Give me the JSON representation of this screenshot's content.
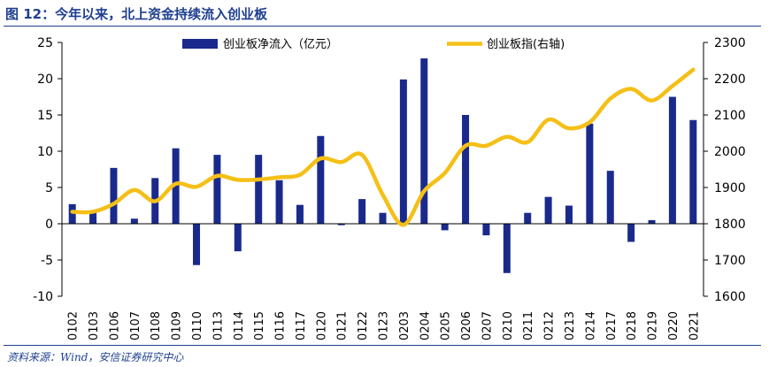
{
  "figure": {
    "title": "图 12：今年以来，北上资金持续流入创业板",
    "source": "资料来源：Wind，安信证券研究中心"
  },
  "colors": {
    "bar": "#1a2a8c",
    "line": "#f5bf16",
    "rule": "#1f3f8f"
  },
  "chart_data": {
    "type": "bar+line",
    "title": "今年以来，北上资金持续流入创业板",
    "categories": [
      "0102",
      "0103",
      "0106",
      "0107",
      "0108",
      "0109",
      "0110",
      "0113",
      "0114",
      "0115",
      "0116",
      "0117",
      "0120",
      "0121",
      "0122",
      "0123",
      "0203",
      "0204",
      "0205",
      "0206",
      "0207",
      "0210",
      "0211",
      "0212",
      "0213",
      "0214",
      "0217",
      "0218",
      "0219",
      "0220",
      "0221"
    ],
    "series": [
      {
        "name": "创业板净流入（亿元）",
        "type": "bar",
        "axis": "left",
        "values": [
          2.7,
          1.7,
          7.7,
          0.7,
          6.3,
          10.4,
          -5.7,
          9.5,
          -3.8,
          9.5,
          6.0,
          2.6,
          12.1,
          -0.2,
          3.4,
          1.5,
          19.9,
          22.8,
          -0.9,
          15.0,
          -1.6,
          -6.8,
          1.5,
          3.7,
          2.5,
          13.8,
          7.3,
          -2.5,
          0.5,
          17.5,
          14.3
        ]
      },
      {
        "name": "创业板指(右轴)",
        "type": "line",
        "axis": "right",
        "values": [
          1833,
          1833,
          1855,
          1893,
          1862,
          1910,
          1902,
          1932,
          1921,
          1922,
          1928,
          1935,
          1980,
          1970,
          1990,
          1880,
          1797,
          1890,
          1940,
          2015,
          2015,
          2040,
          2025,
          2087,
          2063,
          2080,
          2145,
          2172,
          2140,
          2180,
          2225
        ]
      }
    ],
    "y_left": {
      "range": [
        -10,
        25
      ],
      "ticks": [
        -10,
        -5,
        0,
        5,
        10,
        15,
        20,
        25
      ]
    },
    "y_right": {
      "range": [
        1600,
        2300
      ],
      "ticks": [
        1600,
        1700,
        1800,
        1900,
        2000,
        2100,
        2200,
        2300
      ]
    },
    "legend": {
      "position": "top",
      "items": [
        "创业板净流入（亿元）",
        "创业板指(右轴)"
      ]
    },
    "grid": false
  }
}
